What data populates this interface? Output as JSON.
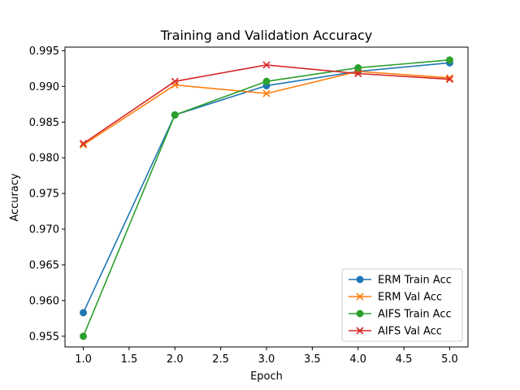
{
  "chart_data": {
    "type": "line",
    "title": "Training and Validation Accuracy",
    "xlabel": "Epoch",
    "ylabel": "Accuracy",
    "xlim": [
      0.8,
      5.2
    ],
    "ylim": [
      0.9535,
      0.9955
    ],
    "xticks": [
      "1.0",
      "1.5",
      "2.0",
      "2.5",
      "3.0",
      "3.5",
      "4.0",
      "4.5",
      "5.0"
    ],
    "yticks": [
      "0.955",
      "0.960",
      "0.965",
      "0.970",
      "0.975",
      "0.980",
      "0.985",
      "0.990",
      "0.995"
    ],
    "grid": false,
    "legend_position": "lower-right",
    "x": [
      1,
      2,
      3,
      4,
      5
    ],
    "series": [
      {
        "name": "ERM Train Acc",
        "color": "#1f77b4",
        "marker": "circle",
        "values": [
          0.9583,
          0.986,
          0.9901,
          0.9921,
          0.9933
        ]
      },
      {
        "name": "ERM Val Acc",
        "color": "#ff7f0e",
        "marker": "x",
        "values": [
          0.9818,
          0.9902,
          0.989,
          0.9921,
          0.9912
        ]
      },
      {
        "name": "AIFS Train Acc",
        "color": "#2ca02c",
        "marker": "circle",
        "values": [
          0.955,
          0.986,
          0.9907,
          0.9926,
          0.9937
        ]
      },
      {
        "name": "AIFS Val Acc",
        "color": "#d62728",
        "marker": "x",
        "values": [
          0.982,
          0.9907,
          0.993,
          0.9918,
          0.991
        ]
      }
    ]
  }
}
